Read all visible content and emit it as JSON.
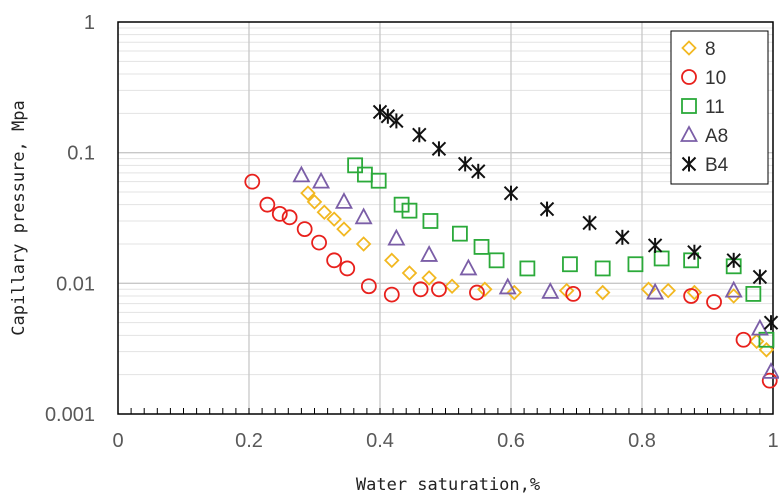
{
  "chart_data": {
    "type": "scatter",
    "xlabel": "Water saturation,%",
    "ylabel": "Capillary pressure, Mpa",
    "xlim": [
      0,
      1
    ],
    "ylim": [
      0.001,
      1
    ],
    "yscale": "log",
    "grid": true,
    "legend_position": "top-right",
    "x_ticks": [
      "0",
      "0.2",
      "0.4",
      "0.6",
      "0.8",
      "1"
    ],
    "y_ticks": [
      "0.001",
      "0.01",
      "0.1",
      "1"
    ],
    "series": [
      {
        "name": "8",
        "marker": "diamond",
        "color": "#F2B821",
        "points": [
          [
            0.29,
            0.049
          ],
          [
            0.3,
            0.042
          ],
          [
            0.315,
            0.035
          ],
          [
            0.33,
            0.031
          ],
          [
            0.345,
            0.026
          ],
          [
            0.375,
            0.02
          ],
          [
            0.418,
            0.015
          ],
          [
            0.445,
            0.012
          ],
          [
            0.475,
            0.011
          ],
          [
            0.51,
            0.0095
          ],
          [
            0.56,
            0.009
          ],
          [
            0.605,
            0.0085
          ],
          [
            0.685,
            0.0088
          ],
          [
            0.74,
            0.0085
          ],
          [
            0.81,
            0.009
          ],
          [
            0.84,
            0.0088
          ],
          [
            0.88,
            0.0085
          ],
          [
            0.94,
            0.008
          ],
          [
            0.975,
            0.0036
          ],
          [
            0.99,
            0.0031
          ]
        ]
      },
      {
        "name": "10",
        "marker": "circle",
        "color": "#E8201C",
        "points": [
          [
            0.205,
            0.06
          ],
          [
            0.228,
            0.04
          ],
          [
            0.247,
            0.034
          ],
          [
            0.262,
            0.032
          ],
          [
            0.285,
            0.026
          ],
          [
            0.307,
            0.0205
          ],
          [
            0.33,
            0.015
          ],
          [
            0.35,
            0.013
          ],
          [
            0.383,
            0.0095
          ],
          [
            0.418,
            0.0082
          ],
          [
            0.462,
            0.009
          ],
          [
            0.49,
            0.009
          ],
          [
            0.548,
            0.0085
          ],
          [
            0.695,
            0.0083
          ],
          [
            0.875,
            0.008
          ],
          [
            0.91,
            0.0072
          ],
          [
            0.955,
            0.0037
          ],
          [
            0.995,
            0.0018
          ]
        ]
      },
      {
        "name": "11",
        "marker": "square",
        "color": "#2BAA3A",
        "points": [
          [
            0.362,
            0.08
          ],
          [
            0.377,
            0.068
          ],
          [
            0.398,
            0.061
          ],
          [
            0.433,
            0.04
          ],
          [
            0.445,
            0.036
          ],
          [
            0.477,
            0.03
          ],
          [
            0.522,
            0.024
          ],
          [
            0.555,
            0.019
          ],
          [
            0.578,
            0.015
          ],
          [
            0.625,
            0.013
          ],
          [
            0.69,
            0.014
          ],
          [
            0.74,
            0.013
          ],
          [
            0.79,
            0.014
          ],
          [
            0.83,
            0.0155
          ],
          [
            0.875,
            0.015
          ],
          [
            0.94,
            0.0135
          ],
          [
            0.97,
            0.0083
          ],
          [
            0.99,
            0.0037
          ]
        ]
      },
      {
        "name": "A8",
        "marker": "triangle",
        "color": "#7B5EA7",
        "points": [
          [
            0.28,
            0.067
          ],
          [
            0.31,
            0.06
          ],
          [
            0.345,
            0.042
          ],
          [
            0.375,
            0.032
          ],
          [
            0.425,
            0.022
          ],
          [
            0.475,
            0.0165
          ],
          [
            0.535,
            0.013
          ],
          [
            0.595,
            0.0093
          ],
          [
            0.66,
            0.0086
          ],
          [
            0.82,
            0.0085
          ],
          [
            0.94,
            0.0088
          ],
          [
            0.98,
            0.0045
          ],
          [
            0.997,
            0.0021
          ]
        ]
      },
      {
        "name": "B4",
        "marker": "asterisk",
        "color": "#111111",
        "points": [
          [
            0.4,
            0.205
          ],
          [
            0.412,
            0.19
          ],
          [
            0.425,
            0.175
          ],
          [
            0.46,
            0.137
          ],
          [
            0.49,
            0.107
          ],
          [
            0.53,
            0.082
          ],
          [
            0.55,
            0.072
          ],
          [
            0.6,
            0.049
          ],
          [
            0.655,
            0.037
          ],
          [
            0.72,
            0.029
          ],
          [
            0.77,
            0.0225
          ],
          [
            0.82,
            0.0195
          ],
          [
            0.88,
            0.0173
          ],
          [
            0.94,
            0.015
          ],
          [
            0.98,
            0.0112
          ],
          [
            0.997,
            0.005
          ]
        ]
      }
    ]
  }
}
